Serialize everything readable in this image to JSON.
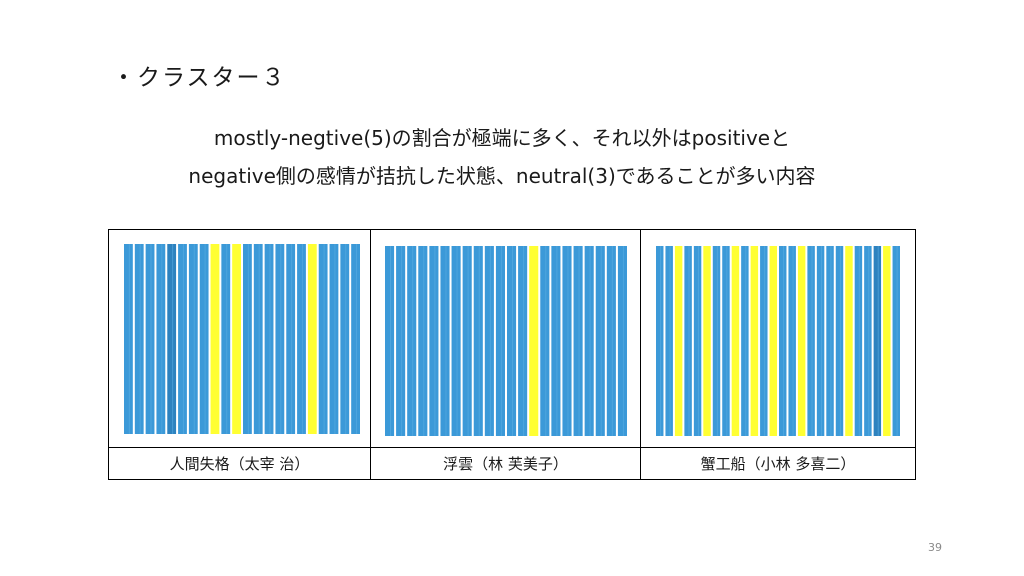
{
  "slide": {
    "title": "・クラスター３",
    "description_line1": "mostly-negtive(5)の割合が極端に多く、それ以外はpositiveと",
    "description_line2": "negative側の感情が拮抗した状態、neutral(3)であることが多い内容",
    "page_number": "39"
  },
  "colors": {
    "negative": "#3b99d8",
    "negative_dark": "#2d82bf",
    "neutral": "#ffff33",
    "background": "#ffffff"
  },
  "legend_meaning": {
    "blue": "mostly-negtive(5)",
    "yellow": "neutral(3)"
  },
  "books": [
    {
      "title": "人間失格（太宰 治）",
      "stripes": [
        "n",
        "n",
        "n",
        "n",
        "d",
        "n",
        "n",
        "n",
        "y",
        "n",
        "y",
        "n",
        "n",
        "n",
        "n",
        "n",
        "n",
        "y",
        "n",
        "n",
        "n",
        "n"
      ]
    },
    {
      "title": "浮雲（林 芙美子）",
      "stripes": [
        "n",
        "n",
        "n",
        "n",
        "n",
        "n",
        "n",
        "n",
        "n",
        "n",
        "n",
        "n",
        "n",
        "y",
        "n",
        "n",
        "n",
        "n",
        "n",
        "n",
        "n",
        "n"
      ]
    },
    {
      "title": "蟹工船（小林 多喜二）",
      "stripes": [
        "n",
        "n",
        "y",
        "n",
        "n",
        "y",
        "n",
        "n",
        "y",
        "n",
        "y",
        "n",
        "y",
        "n",
        "n",
        "y",
        "n",
        "n",
        "n",
        "n",
        "y",
        "n",
        "n",
        "d",
        "y",
        "n"
      ]
    }
  ]
}
